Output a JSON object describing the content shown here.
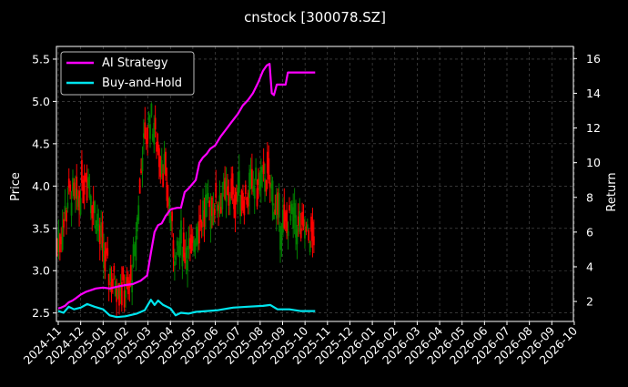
{
  "chart_data": {
    "type": "line",
    "title": "cnstock [300078.SZ]",
    "ylabel_left": "Price",
    "ylabel_right": "Return",
    "ylim_left": [
      2.4,
      5.65
    ],
    "ylim_right": [
      0.85,
      16.7
    ],
    "yticks_left": [
      "2.5",
      "3.0",
      "3.5",
      "4.0",
      "4.5",
      "5.0",
      "5.5"
    ],
    "yticks_right": [
      "2",
      "4",
      "6",
      "8",
      "10",
      "12",
      "14",
      "16"
    ],
    "xticks": [
      "2024-11",
      "2024-12",
      "2025-01",
      "2025-02",
      "2025-03",
      "2025-04",
      "2025-05",
      "2025-06",
      "2025-07",
      "2025-08",
      "2025-09",
      "2025-10",
      "2025-11",
      "2025-12",
      "2026-01",
      "2026-02",
      "2026-03",
      "2026-04",
      "2026-05",
      "2026-06",
      "2026-07",
      "2026-08",
      "2026-09",
      "2026-10"
    ],
    "grid": true,
    "legend_position": "top-left",
    "colors": {
      "background": "#000000",
      "ai_strategy": "#ff00ff",
      "buy_and_hold": "#00e5ee",
      "candle_up": "#ff0000",
      "candle_down": "#008000",
      "text": "#ffffff",
      "grid": "#555555"
    },
    "series": [
      {
        "name": "AI Strategy",
        "axis": "right",
        "points": [
          [
            "2024-11-01",
            1.6
          ],
          [
            "2024-11-05",
            1.65
          ],
          [
            "2024-11-10",
            1.75
          ],
          [
            "2024-11-15",
            1.95
          ],
          [
            "2024-11-20",
            2.05
          ],
          [
            "2024-11-25",
            2.2
          ],
          [
            "2024-12-01",
            2.4
          ],
          [
            "2024-12-08",
            2.55
          ],
          [
            "2024-12-15",
            2.65
          ],
          [
            "2024-12-22",
            2.75
          ],
          [
            "2025-01-01",
            2.8
          ],
          [
            "2025-01-10",
            2.75
          ],
          [
            "2025-01-20",
            2.85
          ],
          [
            "2025-02-01",
            2.95
          ],
          [
            "2025-02-10",
            3.0
          ],
          [
            "2025-02-20",
            3.2
          ],
          [
            "2025-02-28",
            3.5
          ],
          [
            "2025-03-05",
            4.8
          ],
          [
            "2025-03-10",
            6.0
          ],
          [
            "2025-03-15",
            6.4
          ],
          [
            "2025-03-20",
            6.5
          ],
          [
            "2025-03-25",
            6.9
          ],
          [
            "2025-04-01",
            7.3
          ],
          [
            "2025-04-05",
            7.35
          ],
          [
            "2025-04-10",
            7.4
          ],
          [
            "2025-04-15",
            7.4
          ],
          [
            "2025-04-20",
            8.3
          ],
          [
            "2025-04-25",
            8.5
          ],
          [
            "2025-05-01",
            8.8
          ],
          [
            "2025-05-05",
            9.0
          ],
          [
            "2025-05-10",
            10.0
          ],
          [
            "2025-05-15",
            10.3
          ],
          [
            "2025-05-20",
            10.5
          ],
          [
            "2025-05-25",
            10.8
          ],
          [
            "2025-06-01",
            11.0
          ],
          [
            "2025-06-08",
            11.5
          ],
          [
            "2025-06-15",
            11.9
          ],
          [
            "2025-06-22",
            12.3
          ],
          [
            "2025-07-01",
            12.8
          ],
          [
            "2025-07-08",
            13.3
          ],
          [
            "2025-07-15",
            13.6
          ],
          [
            "2025-07-22",
            14.0
          ],
          [
            "2025-07-29",
            14.6
          ],
          [
            "2025-08-05",
            15.3
          ],
          [
            "2025-08-10",
            15.6
          ],
          [
            "2025-08-14",
            15.7
          ],
          [
            "2025-08-17",
            14.0
          ],
          [
            "2025-08-20",
            13.9
          ],
          [
            "2025-08-24",
            14.5
          ],
          [
            "2025-09-05",
            14.5
          ],
          [
            "2025-09-08",
            15.2
          ],
          [
            "2025-09-30",
            15.2
          ],
          [
            "2025-10-15",
            15.2
          ]
        ]
      },
      {
        "name": "Buy-and-Hold",
        "axis": "right",
        "points": [
          [
            "2024-11-01",
            1.45
          ],
          [
            "2024-11-08",
            1.35
          ],
          [
            "2024-11-15",
            1.7
          ],
          [
            "2024-11-22",
            1.55
          ],
          [
            "2024-12-01",
            1.65
          ],
          [
            "2024-12-10",
            1.85
          ],
          [
            "2024-12-20",
            1.7
          ],
          [
            "2025-01-01",
            1.55
          ],
          [
            "2025-01-10",
            1.2
          ],
          [
            "2025-01-20",
            1.1
          ],
          [
            "2025-02-01",
            1.15
          ],
          [
            "2025-02-15",
            1.3
          ],
          [
            "2025-02-25",
            1.5
          ],
          [
            "2025-03-05",
            2.1
          ],
          [
            "2025-03-10",
            1.8
          ],
          [
            "2025-03-15",
            2.05
          ],
          [
            "2025-03-22",
            1.8
          ],
          [
            "2025-04-01",
            1.6
          ],
          [
            "2025-04-08",
            1.2
          ],
          [
            "2025-04-15",
            1.35
          ],
          [
            "2025-04-25",
            1.3
          ],
          [
            "2025-05-05",
            1.4
          ],
          [
            "2025-05-20",
            1.45
          ],
          [
            "2025-06-05",
            1.5
          ],
          [
            "2025-06-25",
            1.65
          ],
          [
            "2025-07-15",
            1.7
          ],
          [
            "2025-08-05",
            1.75
          ],
          [
            "2025-08-15",
            1.8
          ],
          [
            "2025-08-25",
            1.55
          ],
          [
            "2025-09-10",
            1.55
          ],
          [
            "2025-09-25",
            1.45
          ],
          [
            "2025-10-15",
            1.45
          ]
        ]
      }
    ]
  }
}
